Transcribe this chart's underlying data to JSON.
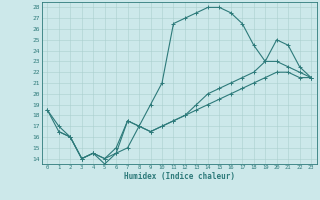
{
  "xlabel": "Humidex (Indice chaleur)",
  "bg_color": "#cce8ea",
  "line_color": "#2d7a7a",
  "grid_color": "#aacfcf",
  "xlim": [
    -0.5,
    23.5
  ],
  "ylim": [
    13.5,
    28.5
  ],
  "xticks": [
    0,
    1,
    2,
    3,
    4,
    5,
    6,
    7,
    8,
    9,
    10,
    11,
    12,
    13,
    14,
    15,
    16,
    17,
    18,
    19,
    20,
    21,
    22,
    23
  ],
  "yticks": [
    14,
    15,
    16,
    17,
    18,
    19,
    20,
    21,
    22,
    23,
    24,
    25,
    26,
    27,
    28
  ],
  "curve1_x": [
    0,
    1,
    2,
    3,
    4,
    5,
    6,
    7,
    8,
    9,
    10,
    11,
    12,
    13,
    14,
    15,
    16,
    17,
    18,
    19,
    20,
    21,
    22,
    23
  ],
  "curve1_y": [
    18.5,
    16.5,
    16,
    14,
    14.5,
    14,
    15,
    17.5,
    17,
    16.5,
    17,
    17.5,
    18,
    18.5,
    19,
    19.5,
    20,
    20.5,
    21,
    21.5,
    22,
    22,
    21.5,
    21.5
  ],
  "curve2_x": [
    0,
    1,
    2,
    3,
    4,
    5,
    6,
    7,
    8,
    9,
    10,
    11,
    12,
    13,
    14,
    15,
    16,
    17,
    18,
    19,
    20,
    21,
    22,
    23
  ],
  "curve2_y": [
    18.5,
    17,
    16,
    14,
    14.5,
    14,
    14.5,
    17.5,
    17,
    16.5,
    17,
    17.5,
    18,
    19,
    20,
    20.5,
    21,
    21.5,
    22,
    23,
    25,
    24.5,
    22.5,
    21.5
  ],
  "curve3_x": [
    1,
    2,
    3,
    4,
    5,
    6,
    7,
    8,
    9,
    10,
    11,
    12,
    13,
    14,
    15,
    16,
    17,
    18,
    19,
    20,
    21,
    22,
    23
  ],
  "curve3_y": [
    16.5,
    16,
    14,
    14.5,
    13.5,
    14.5,
    15,
    17,
    19,
    21,
    26.5,
    27,
    27.5,
    28,
    28,
    27.5,
    26.5,
    24.5,
    23,
    23,
    22.5,
    22,
    21.5
  ]
}
